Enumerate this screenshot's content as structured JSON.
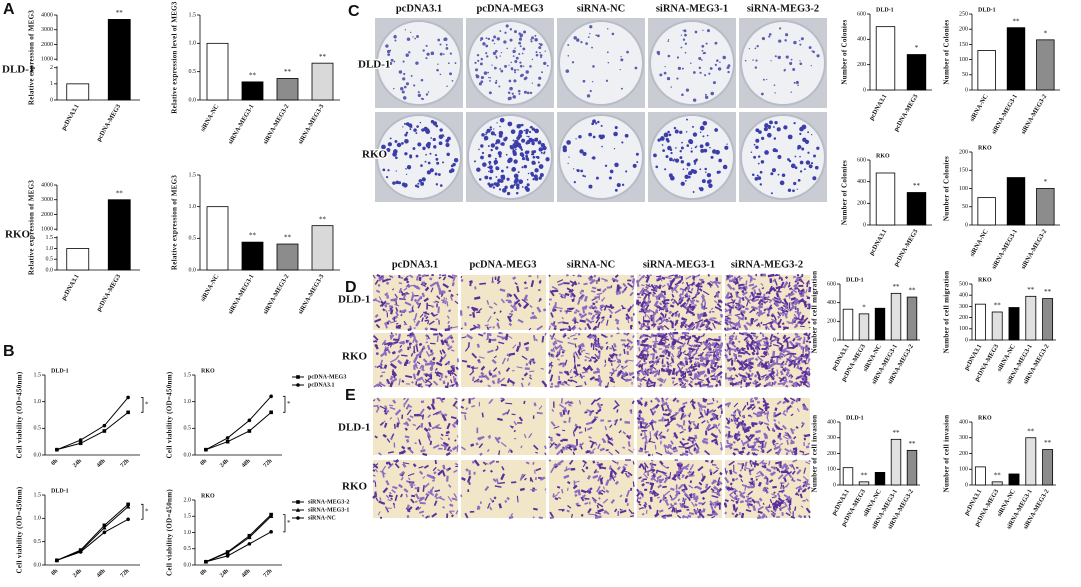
{
  "figure": {
    "panel_labels": [
      "A",
      "B",
      "C",
      "D",
      "E"
    ],
    "a_rows": [
      "DLD-1",
      "RKO"
    ],
    "c_columns": [
      "pcDNA3.1",
      "pcDNA-MEG3",
      "siRNA-NC",
      "siRNA-MEG3-1",
      "siRNA-MEG3-2"
    ],
    "c_rows": [
      "DLD-1",
      "RKO"
    ],
    "de_columns": [
      "pcDNA3.1",
      "pcDNA-MEG3",
      "siRNA-NC",
      "siRNA-MEG3-1",
      "siRNA-MEG3-2"
    ],
    "d_rows": [
      "DLD-1",
      "RKO"
    ],
    "e_rows": [
      "DLD-1",
      "RKO"
    ]
  },
  "chart_data": [
    {
      "type": "bar",
      "ylabel": "Relative expression of MEG3",
      "categories": [
        "pcDNA3.1",
        "pcDNA-MEG3"
      ],
      "values": [
        1,
        3700
      ],
      "colors": [
        "#ffffff",
        "#000000"
      ],
      "ylim": [
        0,
        4000
      ],
      "yticks": [
        0,
        1,
        2,
        1000,
        2000,
        3000,
        4000
      ],
      "axis_break": [
        2,
        1000
      ],
      "annotations": [
        null,
        "**"
      ]
    },
    {
      "type": "bar",
      "ylabel": "Relative expression level of MEG3",
      "categories": [
        "siRNA-NC",
        "siRNA-MEG3-1",
        "siRNA-MEG3-2",
        "siRNA-MEG3-3"
      ],
      "values": [
        1,
        0.32,
        0.38,
        0.65
      ],
      "colors": [
        "#ffffff",
        "#000000",
        "#8c8c8c",
        "#d9d9d9"
      ],
      "ylim": [
        0,
        1.5
      ],
      "yticks": [
        {
          "value": 0,
          "label": "0.0"
        },
        {
          "value": 0.5,
          "label": "0.5"
        },
        {
          "value": 1,
          "label": "1.0"
        },
        {
          "value": 1.5,
          "label": "1.5"
        }
      ],
      "annotations": [
        null,
        "**",
        "**",
        "**"
      ]
    },
    {
      "type": "bar",
      "ylabel": "Relative expression of MEG3",
      "categories": [
        "pcDNA3.1",
        "pcDNA-MEG3"
      ],
      "values": [
        1,
        3000
      ],
      "colors": [
        "#ffffff",
        "#000000"
      ],
      "ylim": [
        0,
        4000
      ],
      "yticks": [
        {
          "value": 0,
          "label": "0.0"
        },
        {
          "value": 0.5,
          "label": "0.5"
        },
        {
          "value": 1,
          "label": "1.0"
        },
        {
          "value": 1.5,
          "label": "1.5"
        },
        1000,
        2000,
        3000,
        4000
      ],
      "axis_break": [
        1.5,
        1000
      ],
      "annotations": [
        null,
        "**"
      ]
    },
    {
      "type": "bar",
      "ylabel": "Relative expression of MEG3",
      "categories": [
        "siRNA-NC",
        "siRNA-MEG3-1",
        "siRNA-MEG3-2",
        "siRNA-MEG3-3"
      ],
      "values": [
        1,
        0.44,
        0.41,
        0.7
      ],
      "colors": [
        "#ffffff",
        "#000000",
        "#8c8c8c",
        "#d9d9d9"
      ],
      "ylim": [
        0,
        1.5
      ],
      "yticks": [
        {
          "value": 0,
          "label": "0.0"
        },
        {
          "value": 0.5,
          "label": "0.5"
        },
        {
          "value": 1,
          "label": "1.0"
        },
        {
          "value": 1.5,
          "label": "1.5"
        }
      ],
      "annotations": [
        null,
        "**",
        "**",
        "**"
      ]
    },
    {
      "type": "line",
      "title": "DLD-1",
      "ylabel": "Cell viability (OD=450nm)",
      "categories": [
        "0h",
        "24h",
        "48h",
        "72h"
      ],
      "series": [
        {
          "name": "pcDNA-MEG3",
          "color": "#000000",
          "marker": "square",
          "values": [
            0.1,
            0.22,
            0.45,
            0.8
          ]
        },
        {
          "name": "pcDNA3.1",
          "color": "#000000",
          "marker": "circle",
          "values": [
            0.1,
            0.28,
            0.55,
            1.08
          ]
        }
      ],
      "ylim": [
        0,
        1.5
      ],
      "yticks": [
        {
          "value": 0,
          "label": "0.0"
        },
        {
          "value": 0.5,
          "label": "0.5"
        },
        {
          "value": 1,
          "label": "1.0"
        },
        {
          "value": 1.5,
          "label": "1.5"
        }
      ],
      "legend": false,
      "annotation": "*"
    },
    {
      "type": "line",
      "title": "RKO",
      "ylabel": "Cell viability (OD=450nm)",
      "categories": [
        "0h",
        "24h",
        "48h",
        "72h"
      ],
      "series": [
        {
          "name": "pcDNA-MEG3",
          "color": "#000000",
          "marker": "square",
          "values": [
            0.1,
            0.25,
            0.45,
            0.8
          ]
        },
        {
          "name": "pcDNA3.1",
          "color": "#000000",
          "marker": "circle",
          "values": [
            0.1,
            0.32,
            0.65,
            1.1
          ]
        }
      ],
      "ylim": [
        0,
        1.5
      ],
      "yticks": [
        {
          "value": 0,
          "label": "0.0"
        },
        {
          "value": 0.5,
          "label": "0.5"
        },
        {
          "value": 1,
          "label": "1.0"
        },
        {
          "value": 1.5,
          "label": "1.5"
        }
      ],
      "legend": true,
      "annotation": "*"
    },
    {
      "type": "line",
      "title": "DLD-1",
      "ylabel": "Cell viability (OD=450nm)",
      "categories": [
        "0h",
        "24h",
        "48h",
        "72h"
      ],
      "series": [
        {
          "name": "siRNA-MEG3-2",
          "color": "#000000",
          "marker": "square",
          "values": [
            0.1,
            0.32,
            0.85,
            1.3
          ]
        },
        {
          "name": "siRNA-MEG3-1",
          "color": "#000000",
          "marker": "triangle",
          "values": [
            0.1,
            0.3,
            0.8,
            1.25
          ]
        },
        {
          "name": "siRNA-NC",
          "color": "#000000",
          "marker": "circle",
          "values": [
            0.1,
            0.28,
            0.7,
            0.98
          ]
        }
      ],
      "ylim": [
        0,
        1.5
      ],
      "yticks": [
        {
          "value": 0,
          "label": "0.0"
        },
        {
          "value": 0.5,
          "label": "0.5"
        },
        {
          "value": 1,
          "label": "1.0"
        },
        {
          "value": 1.5,
          "label": "1.5"
        }
      ],
      "legend": false,
      "annotation": "*"
    },
    {
      "type": "line",
      "title": "RKO",
      "ylabel": "Cell viability (OD=450nm)",
      "categories": [
        "0h",
        "24h",
        "48h",
        "72h"
      ],
      "series": [
        {
          "name": "siRNA-MEG3-2",
          "color": "#000000",
          "marker": "square",
          "values": [
            0.1,
            0.4,
            0.9,
            1.55
          ]
        },
        {
          "name": "siRNA-MEG3-1",
          "color": "#000000",
          "marker": "triangle",
          "values": [
            0.1,
            0.38,
            0.85,
            1.5
          ]
        },
        {
          "name": "siRNA-NC",
          "color": "#000000",
          "marker": "circle",
          "values": [
            0.1,
            0.28,
            0.65,
            1.02
          ]
        }
      ],
      "ylim": [
        0,
        2
      ],
      "yticks": [
        {
          "value": 0,
          "label": "0.0"
        },
        {
          "value": 0.5,
          "label": "0.5"
        },
        {
          "value": 1,
          "label": "1.0"
        },
        {
          "value": 1.5,
          "label": "1.5"
        },
        {
          "value": 2,
          "label": "2.0"
        }
      ],
      "legend": true,
      "annotation": "*"
    },
    {
      "type": "bar",
      "title": "DLD-1",
      "ylabel": "Number of Colonies",
      "categories": [
        "pcDNA3.1",
        "pcDNA-MEG3"
      ],
      "values": [
        500,
        280
      ],
      "colors": [
        "#ffffff",
        "#000000"
      ],
      "ylim": [
        0,
        600
      ],
      "yticks": [
        0,
        200,
        400,
        600
      ],
      "annotations": [
        null,
        "*"
      ]
    },
    {
      "type": "bar",
      "title": "DLD-1",
      "ylabel": "Number of Colonies",
      "categories": [
        "siRNA-NC",
        "siRNA-MEG3-1",
        "siRNA-MEG3-2"
      ],
      "values": [
        130,
        205,
        165
      ],
      "colors": [
        "#ffffff",
        "#000000",
        "#8c8c8c"
      ],
      "ylim": [
        0,
        250
      ],
      "yticks": [
        0,
        50,
        100,
        150,
        200,
        250
      ],
      "annotations": [
        null,
        "**",
        "*"
      ]
    },
    {
      "type": "bar",
      "title": "RKO",
      "ylabel": "Number of Colonies",
      "categories": [
        "pcDNA3.1",
        "pcDNA-MEG3"
      ],
      "values": [
        480,
        300
      ],
      "colors": [
        "#ffffff",
        "#000000"
      ],
      "ylim": [
        0,
        600
      ],
      "yticks": [
        0,
        200,
        400,
        600
      ],
      "annotations": [
        null,
        "**"
      ]
    },
    {
      "type": "bar",
      "title": "RKO",
      "ylabel": "Number of Colonies",
      "categories": [
        "siRNA-NC",
        "siRNA-MEG3-1",
        "siRNA-MEG3-2"
      ],
      "values": [
        75,
        130,
        100
      ],
      "colors": [
        "#ffffff",
        "#000000",
        "#8c8c8c"
      ],
      "ylim": [
        0,
        200
      ],
      "yticks": [
        0,
        50,
        100,
        150,
        200
      ],
      "annotations": [
        null,
        null,
        "*"
      ]
    },
    {
      "type": "bar",
      "title": "DLD-1",
      "ylabel": "Number of cell migration",
      "categories": [
        "pcDNA3.1",
        "pcDNA-MEG3",
        "siRNA-NC",
        "siRNA-MEG3-1",
        "siRNA-MEG3-2"
      ],
      "values": [
        330,
        280,
        340,
        500,
        460
      ],
      "colors": [
        "#ffffff",
        "#e0e0e0",
        "#000000",
        "#e0e0e0",
        "#8c8c8c"
      ],
      "ylim": [
        0,
        600
      ],
      "yticks": [
        0,
        200,
        400,
        600
      ],
      "annotations": [
        null,
        "*",
        null,
        "**",
        "**"
      ]
    },
    {
      "type": "bar",
      "title": "RKO",
      "ylabel": "Number of cell migration",
      "categories": [
        "pcDNA3.1",
        "pcDNA-MEG3",
        "siRNA-NC",
        "siRNA-MEG3-1",
        "siRNA-MEG3-2"
      ],
      "values": [
        320,
        250,
        290,
        390,
        370
      ],
      "colors": [
        "#ffffff",
        "#e0e0e0",
        "#000000",
        "#e0e0e0",
        "#8c8c8c"
      ],
      "ylim": [
        0,
        500
      ],
      "yticks": [
        0,
        100,
        200,
        300,
        400,
        500
      ],
      "annotations": [
        null,
        "**",
        null,
        "**",
        "**"
      ]
    },
    {
      "type": "bar",
      "title": "DLD-1",
      "ylabel": "Number of cell invasion",
      "categories": [
        "pcDNA3.1",
        "pcDNA-MEG3",
        "siRNA-NC",
        "siRNA-MEG3-1",
        "siRNA-MEG3-2"
      ],
      "values": [
        110,
        20,
        80,
        290,
        220
      ],
      "colors": [
        "#ffffff",
        "#e0e0e0",
        "#000000",
        "#e0e0e0",
        "#8c8c8c"
      ],
      "ylim": [
        0,
        400
      ],
      "yticks": [
        0,
        100,
        200,
        300,
        400
      ],
      "annotations": [
        null,
        "**",
        null,
        "**",
        "**"
      ]
    },
    {
      "type": "bar",
      "title": "RKO",
      "ylabel": "Number of cell invasion",
      "categories": [
        "pcDNA3.1",
        "pcDNA-MEG3",
        "siRNA-NC",
        "siRNA-MEG3-1",
        "siRNA-MEG3-2"
      ],
      "values": [
        115,
        20,
        70,
        300,
        225
      ],
      "colors": [
        "#ffffff",
        "#e0e0e0",
        "#000000",
        "#e0e0e0",
        "#8c8c8c"
      ],
      "ylim": [
        0,
        400
      ],
      "yticks": [
        0,
        100,
        200,
        300,
        400
      ],
      "annotations": [
        null,
        "**",
        null,
        "**",
        "**"
      ]
    }
  ]
}
